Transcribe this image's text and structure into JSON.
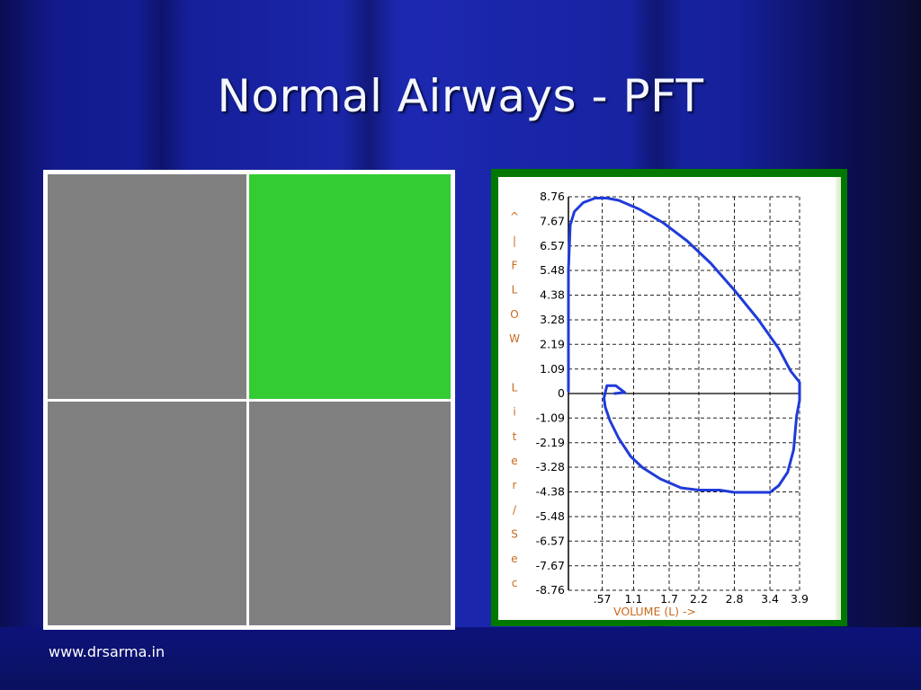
{
  "slide": {
    "title": "Normal Airways - PFT",
    "footer_link": "www.drsarma.in"
  },
  "colors": {
    "background": "#1a24a6",
    "table_cell_gray": "#808080",
    "table_cell_green": "#33cc33",
    "chart_frame": "#007800",
    "curve": "#1f3bd9",
    "axis_label": "#c86a1e"
  },
  "table": {
    "cells": [
      {
        "color": "#808080"
      },
      {
        "color": "#33cc33"
      },
      {
        "color": "#808080"
      },
      {
        "color": "#808080"
      }
    ]
  },
  "chart_data": {
    "type": "line",
    "title": "",
    "xlabel": "VOLUME (L) ->",
    "ylabel": "^ | F L O W   L i t e r / S e c",
    "ylabel_chars": [
      "^",
      "|",
      "F",
      "L",
      "O",
      "W",
      "",
      "L",
      "i",
      "t",
      "e",
      "r",
      "/",
      "S",
      "e",
      "c"
    ],
    "x_ticks": [
      ".57",
      "1.1",
      "1.7",
      "2.2",
      "2.8",
      "3.4",
      "3.9"
    ],
    "x_tick_values": [
      0.57,
      1.1,
      1.7,
      2.2,
      2.8,
      3.4,
      3.9
    ],
    "y_ticks": [
      "8.76",
      "7.67",
      "6.57",
      "5.48",
      "4.38",
      "3.28",
      "2.19",
      "1.09",
      "0",
      "-1.09",
      "-2.19",
      "-3.28",
      "-4.38",
      "-5.48",
      "-6.57",
      "-7.67",
      "-8.76"
    ],
    "y_tick_values": [
      8.76,
      7.67,
      6.57,
      5.48,
      4.38,
      3.28,
      2.19,
      1.09,
      0,
      -1.09,
      -2.19,
      -3.28,
      -4.38,
      -5.48,
      -6.57,
      -7.67,
      -8.76
    ],
    "xlim": [
      0,
      3.9
    ],
    "ylim": [
      -8.76,
      8.76
    ],
    "grid": true,
    "series": [
      {
        "x": [
          0.0,
          0.0,
          0.03,
          0.1,
          0.25,
          0.45,
          0.65,
          0.85,
          1.2,
          1.6,
          2.0,
          2.4,
          2.8,
          3.2,
          3.55,
          3.75,
          3.9,
          3.9,
          3.85,
          3.8,
          3.7,
          3.55,
          3.4,
          3.1,
          2.8,
          2.55,
          2.2,
          1.9,
          1.55,
          1.25,
          1.05,
          0.85,
          0.7,
          0.62,
          0.6,
          0.65,
          0.8,
          0.95,
          0.78
        ],
        "y": [
          0.1,
          5.5,
          7.5,
          8.1,
          8.5,
          8.7,
          8.7,
          8.6,
          8.2,
          7.6,
          6.8,
          5.8,
          4.6,
          3.3,
          2.0,
          1.0,
          0.5,
          -0.3,
          -1.0,
          -2.5,
          -3.5,
          -4.1,
          -4.4,
          -4.4,
          -4.4,
          -4.3,
          -4.3,
          -4.2,
          -3.8,
          -3.3,
          -2.8,
          -2.0,
          -1.2,
          -0.6,
          -0.2,
          0.35,
          0.35,
          0.05,
          0.0
        ]
      }
    ]
  }
}
